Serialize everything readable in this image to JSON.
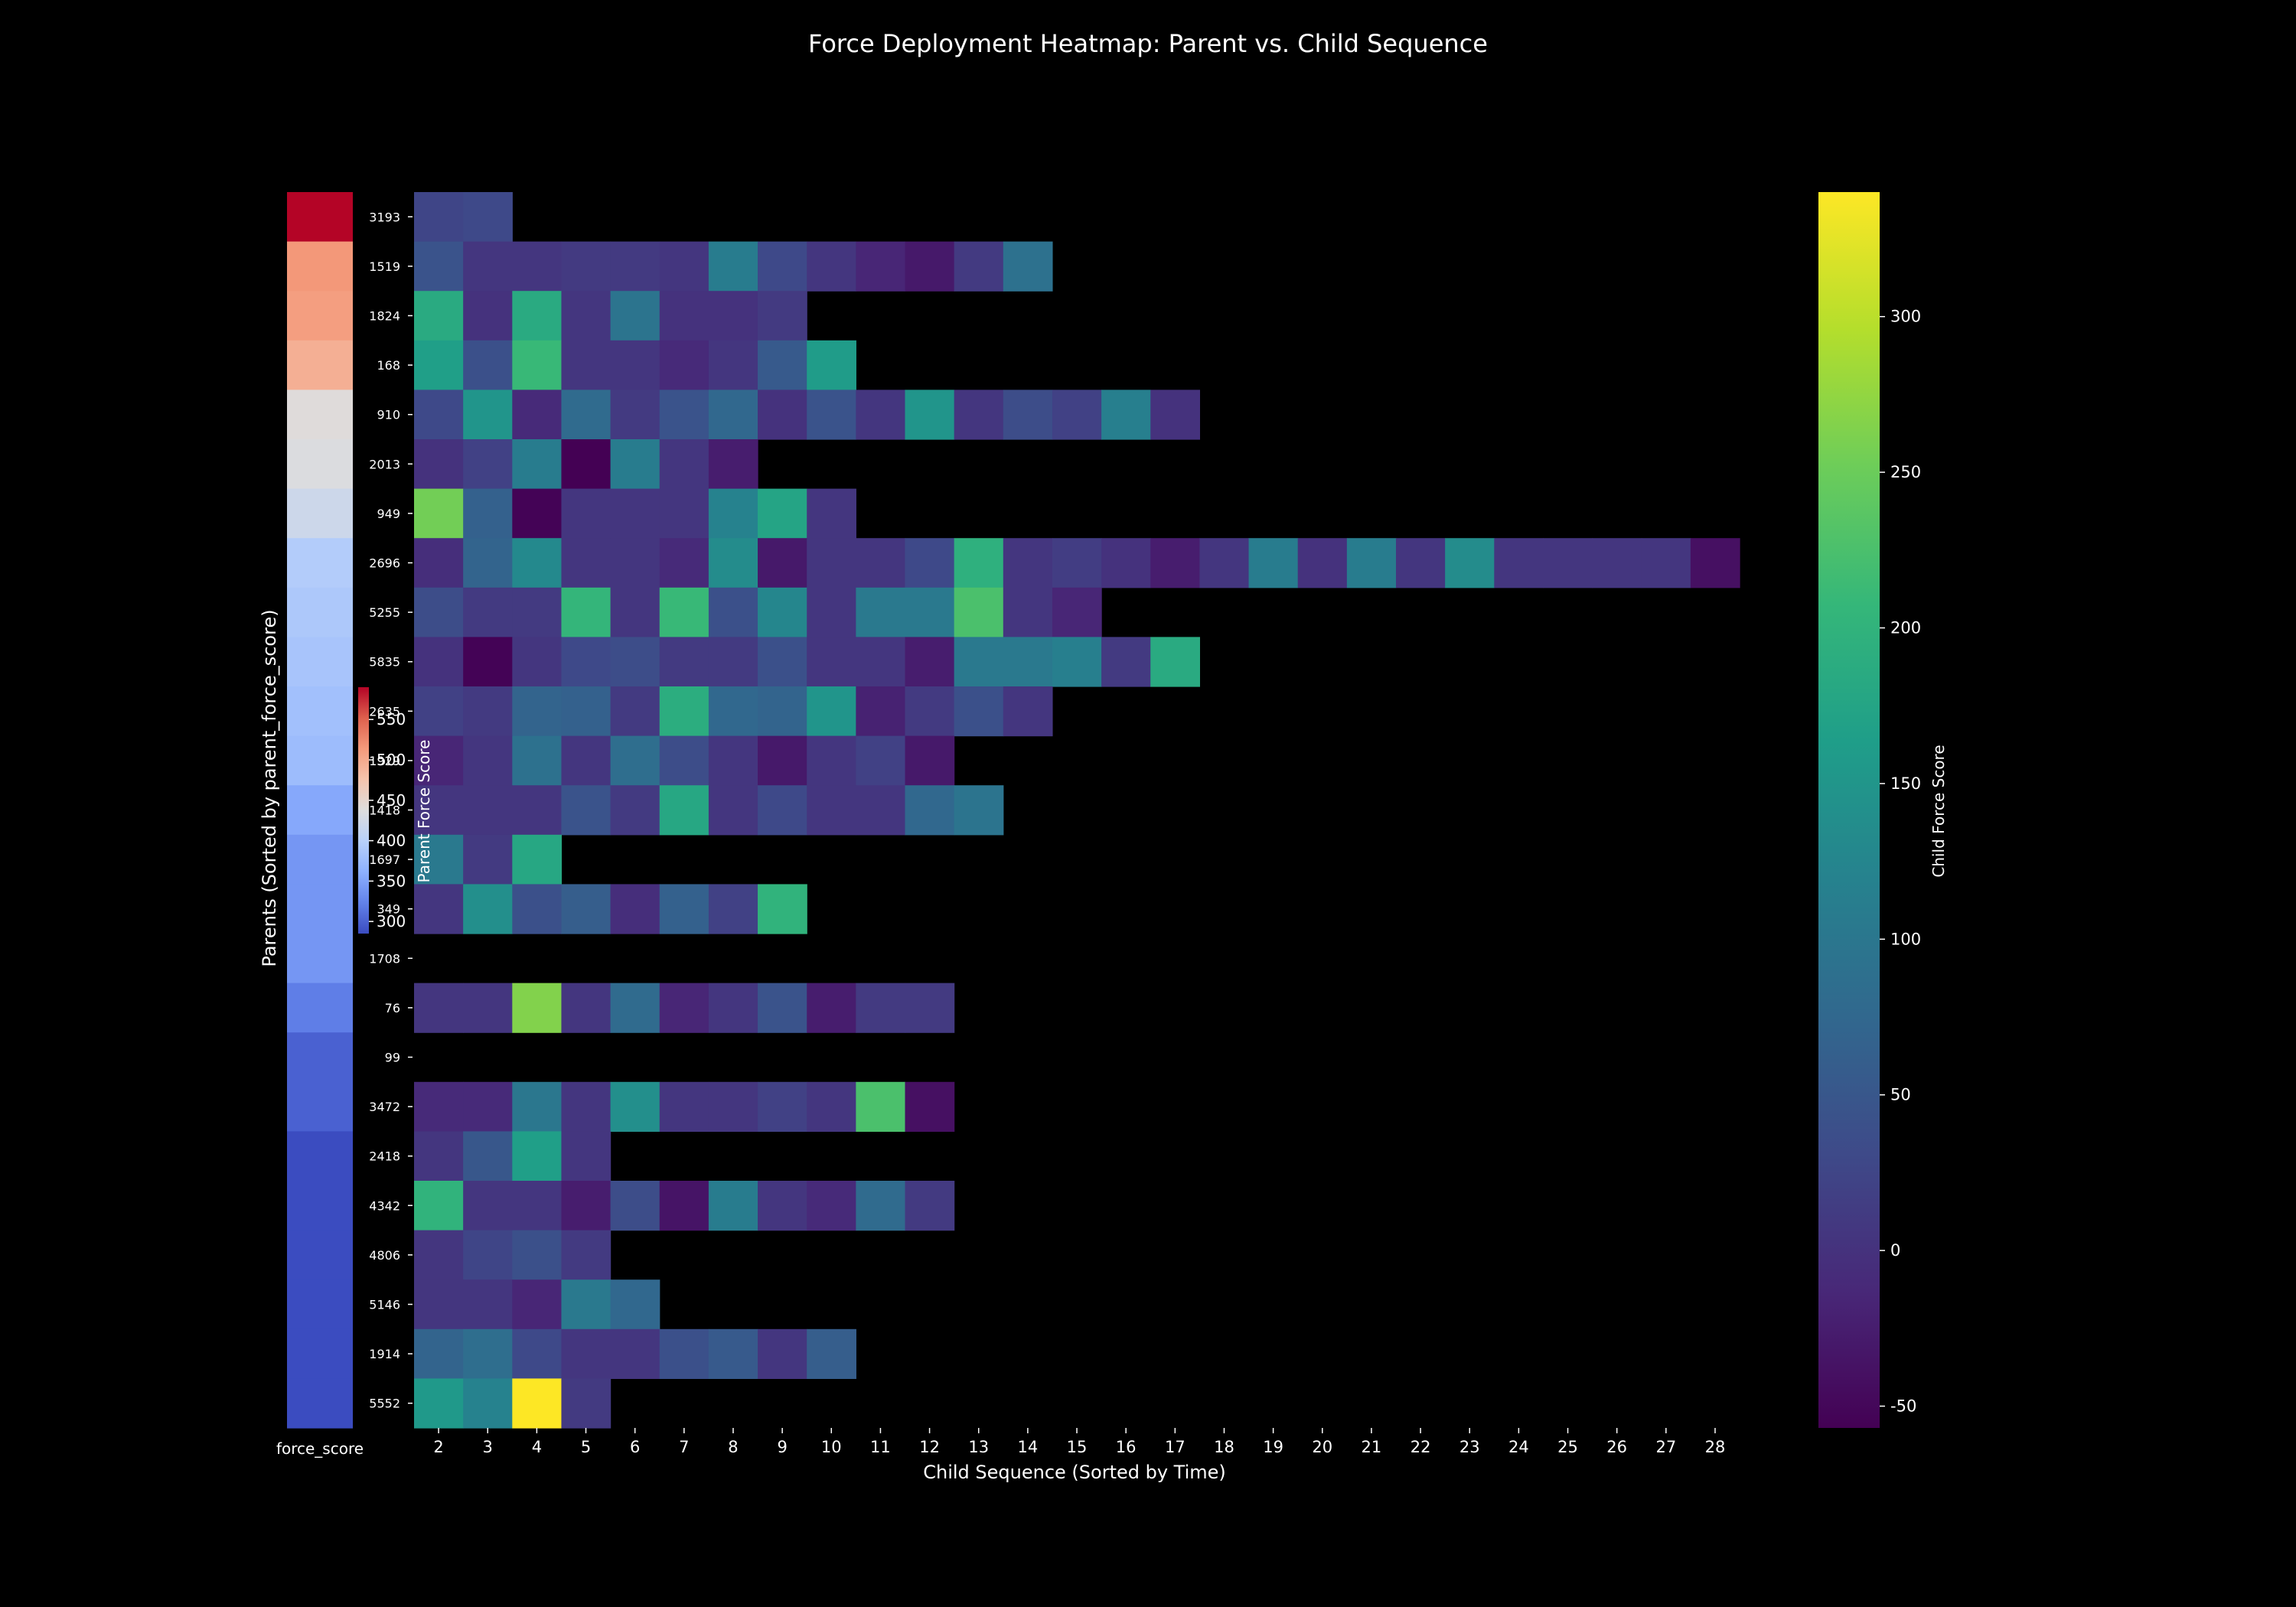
{
  "chart_data": {
    "type": "heatmap",
    "title": "Force Deployment Heatmap: Parent vs. Child Sequence",
    "xlabel": "Child Sequence (Sorted by Time)",
    "ylabel": "Parents (Sorted by parent_force_score)",
    "strip_label": "force_score",
    "x_categories": [
      2,
      3,
      4,
      5,
      6,
      7,
      8,
      9,
      10,
      11,
      12,
      13,
      14,
      15,
      16,
      17,
      18,
      19,
      20,
      21,
      22,
      23,
      24,
      25,
      26,
      27,
      28
    ],
    "rows": [
      {
        "label": "3193",
        "parent_force_score": 590,
        "values": [
          25,
          30
        ]
      },
      {
        "label": "1519",
        "parent_force_score": 515,
        "values": [
          45,
          5,
          5,
          10,
          10,
          5,
          110,
          30,
          5,
          -15,
          -30,
          10,
          90
        ]
      },
      {
        "label": "1824",
        "parent_force_score": 510,
        "values": [
          185,
          0,
          185,
          5,
          95,
          0,
          0,
          10
        ]
      },
      {
        "label": "168",
        "parent_force_score": 495,
        "values": [
          165,
          40,
          210,
          5,
          5,
          -10,
          5,
          55,
          160
        ]
      },
      {
        "label": "910",
        "parent_force_score": 440,
        "values": [
          30,
          150,
          -10,
          80,
          10,
          45,
          75,
          0,
          45,
          5,
          150,
          5,
          35,
          20,
          115,
          0
        ]
      },
      {
        "label": "2013",
        "parent_force_score": 435,
        "values": [
          0,
          20,
          110,
          -60,
          110,
          5,
          -25
        ]
      },
      {
        "label": "949",
        "parent_force_score": 420,
        "values": [
          255,
          65,
          -55,
          5,
          5,
          5,
          120,
          175,
          5
        ]
      },
      {
        "label": "2696",
        "parent_force_score": 395,
        "values": [
          -5,
          70,
          130,
          5,
          5,
          -10,
          135,
          -30,
          5,
          5,
          30,
          195,
          5,
          15,
          0,
          -25,
          5,
          110,
          0,
          110,
          5,
          135,
          5,
          5,
          5,
          5,
          -40
        ]
      },
      {
        "label": "5255",
        "parent_force_score": 390,
        "values": [
          35,
          10,
          10,
          205,
          5,
          210,
          40,
          125,
          5,
          105,
          105,
          225,
          5,
          -15
        ]
      },
      {
        "label": "5835",
        "parent_force_score": 385,
        "values": [
          0,
          -55,
          5,
          30,
          35,
          10,
          10,
          40,
          5,
          5,
          -25,
          105,
          105,
          115,
          10,
          185
        ]
      },
      {
        "label": "2635",
        "parent_force_score": 380,
        "values": [
          20,
          10,
          70,
          65,
          10,
          190,
          75,
          70,
          150,
          -20,
          10,
          40,
          5
        ]
      },
      {
        "label": "1929",
        "parent_force_score": 375,
        "values": [
          -15,
          5,
          90,
          5,
          85,
          35,
          5,
          -30,
          5,
          20,
          -30
        ]
      },
      {
        "label": "1418",
        "parent_force_score": 355,
        "values": [
          5,
          5,
          5,
          45,
          10,
          180,
          5,
          30,
          5,
          5,
          75,
          95
        ]
      },
      {
        "label": "1697",
        "parent_force_score": 340,
        "values": [
          105,
          10,
          180
        ]
      },
      {
        "label": "349",
        "parent_force_score": 340,
        "values": [
          5,
          140,
          40,
          60,
          -5,
          65,
          20,
          200
        ]
      },
      {
        "label": "1708",
        "parent_force_score": 340,
        "values": []
      },
      {
        "label": "76",
        "parent_force_score": 320,
        "values": [
          5,
          5,
          265,
          5,
          80,
          -15,
          5,
          45,
          -25,
          10,
          10
        ]
      },
      {
        "label": "99",
        "parent_force_score": 300,
        "values": []
      },
      {
        "label": "3472",
        "parent_force_score": 300,
        "values": [
          -10,
          -10,
          100,
          5,
          140,
          5,
          5,
          20,
          5,
          225,
          -40
        ]
      },
      {
        "label": "2418",
        "parent_force_score": 285,
        "values": [
          5,
          50,
          165,
          5
        ]
      },
      {
        "label": "4342",
        "parent_force_score": 285,
        "values": [
          200,
          5,
          5,
          -25,
          35,
          -35,
          110,
          5,
          -10,
          80,
          10
        ]
      },
      {
        "label": "4806",
        "parent_force_score": 285,
        "values": [
          5,
          25,
          40,
          10
        ]
      },
      {
        "label": "5146",
        "parent_force_score": 285,
        "values": [
          5,
          5,
          -15,
          105,
          75
        ]
      },
      {
        "label": "1914",
        "parent_force_score": 285,
        "values": [
          70,
          85,
          30,
          5,
          5,
          40,
          55,
          5,
          60
        ]
      },
      {
        "label": "5552",
        "parent_force_score": 285,
        "values": [
          155,
          120,
          340,
          10
        ]
      }
    ],
    "colorbar": {
      "label": "Child Force Score",
      "ticks": [
        -50,
        0,
        50,
        100,
        150,
        200,
        250,
        300
      ],
      "range": [
        -57,
        340
      ],
      "colormap": "viridis"
    },
    "parent_colorbar": {
      "label": "Parent Force Score",
      "ticks": [
        300,
        350,
        400,
        450,
        500,
        550
      ],
      "range": [
        285,
        590
      ],
      "colormap": "coolwarm"
    }
  }
}
